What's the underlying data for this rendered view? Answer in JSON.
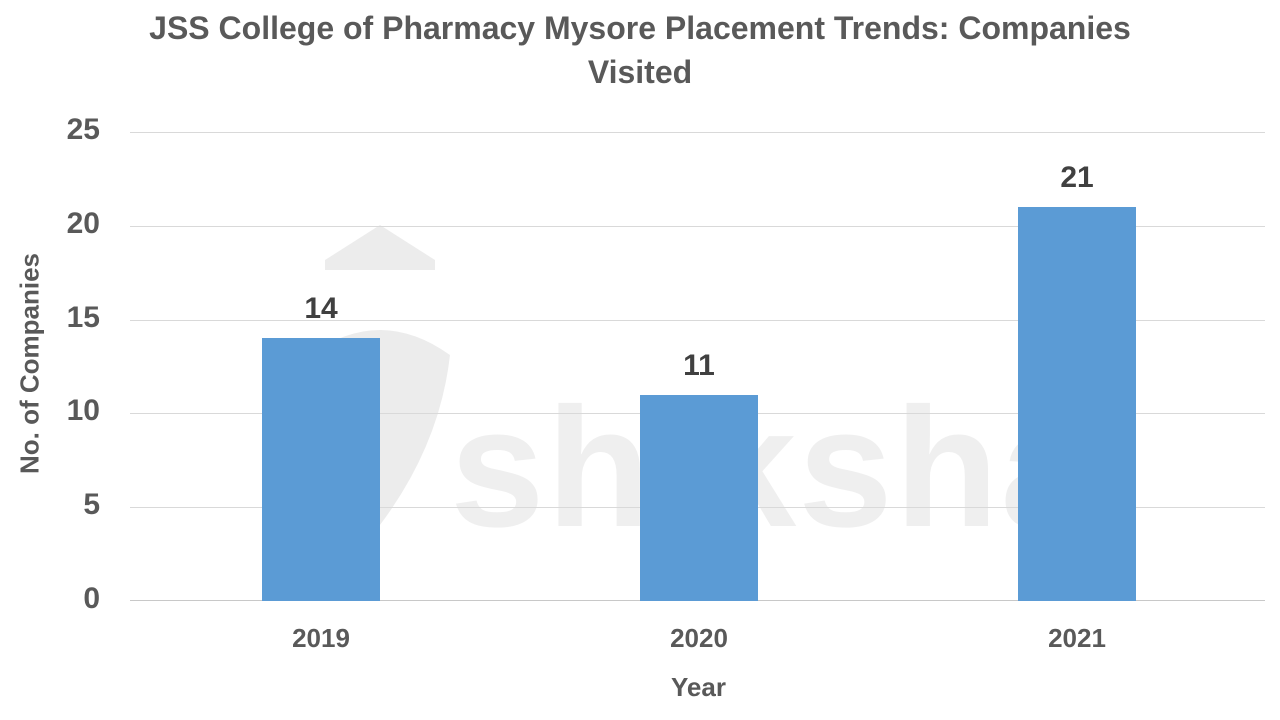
{
  "chart_data": {
    "type": "bar",
    "title": "JSS College of Pharmacy Mysore Placement Trends: Companies Visited",
    "title_lines": [
      "JSS College of Pharmacy Mysore Placement Trends: Companies",
      "Visited"
    ],
    "categories": [
      "2019",
      "2020",
      "2021"
    ],
    "values": [
      14,
      11,
      21
    ],
    "xlabel": "Year",
    "ylabel": "No. of Companies",
    "ylim": [
      0,
      25
    ],
    "yticks": [
      "25",
      "20",
      "15",
      "10",
      "5",
      "0"
    ],
    "data_labels": [
      "14",
      "11",
      "21"
    ],
    "grid": true,
    "legend": "none",
    "bar_color": "#5b9bd5"
  },
  "watermark": {
    "text": "shiksha"
  }
}
